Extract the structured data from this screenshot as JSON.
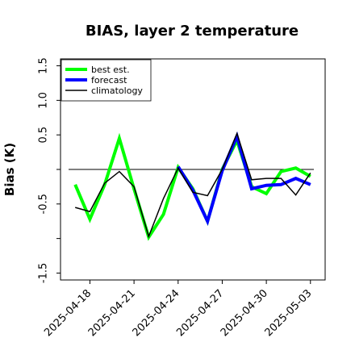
{
  "chart_data": {
    "type": "line",
    "title": "BIAS, layer 2 temperature",
    "ylabel": "Bias (K)",
    "xlabel": "",
    "ylim": [
      -1.6,
      1.6
    ],
    "yticks": [
      -1.5,
      -1.0,
      -0.5,
      0.0,
      0.5,
      1.0,
      1.5
    ],
    "ytick_labels": [
      "-1.5",
      "",
      "-0.5",
      "",
      "0.5",
      "1.0",
      "1.5"
    ],
    "x": [
      "2025-04-17",
      "2025-04-18",
      "2025-04-19",
      "2025-04-20",
      "2025-04-21",
      "2025-04-22",
      "2025-04-23",
      "2025-04-24",
      "2025-04-25",
      "2025-04-26",
      "2025-04-27",
      "2025-04-28",
      "2025-04-29",
      "2025-04-30",
      "2025-05-01",
      "2025-05-02",
      "2025-05-03"
    ],
    "xlim": [
      "2025-04-16",
      "2025-05-04"
    ],
    "xtick_labels": [
      {
        "date": "2025-04-18",
        "label": "2025-04-18",
        "color": "#000000"
      },
      {
        "date": "2025-04-21",
        "label": "2025-04-21",
        "color": "#000000"
      },
      {
        "date": "2025-04-24",
        "label": "2025-04-24",
        "color": "#228B22"
      },
      {
        "date": "2025-04-27",
        "label": "2025-04-27",
        "color": "#000000"
      },
      {
        "date": "2025-04-30",
        "label": "2025-04-30",
        "color": "#000000"
      },
      {
        "date": "2025-05-03",
        "label": "2025-05-03",
        "color": "#000000"
      }
    ],
    "reference_line": 0.0,
    "series": [
      {
        "name": "best est.",
        "color": "#00ff00",
        "values": [
          -0.22,
          -0.72,
          -0.22,
          0.45,
          -0.28,
          -0.98,
          -0.65,
          0.03,
          -0.28,
          -0.75,
          0.0,
          0.42,
          -0.25,
          -0.35,
          -0.03,
          0.02,
          -0.1
        ]
      },
      {
        "name": "forecast",
        "color": "#0000ff",
        "values": [
          null,
          null,
          null,
          null,
          null,
          null,
          null,
          0.04,
          -0.3,
          -0.75,
          -0.02,
          0.48,
          -0.28,
          -0.23,
          -0.22,
          -0.13,
          -0.22
        ]
      },
      {
        "name": "climatology",
        "color": "#000000",
        "values": [
          -0.55,
          -0.61,
          -0.2,
          -0.03,
          -0.25,
          -0.97,
          -0.42,
          0.02,
          -0.33,
          -0.38,
          0.0,
          0.52,
          -0.15,
          -0.13,
          -0.13,
          -0.37,
          -0.05
        ]
      }
    ],
    "legend_position": "top-left",
    "grid": false
  }
}
